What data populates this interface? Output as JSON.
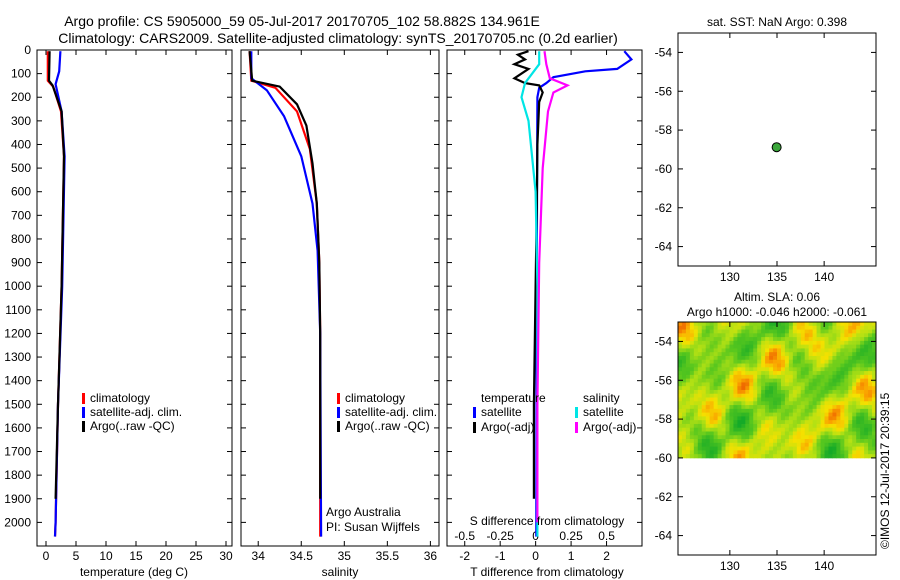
{
  "header": {
    "line1": "Argo profile: CS 5905000_59 05-Jul-2017 20170705_102 58.882S 134.961E",
    "line2": "Climatology: CARS2009. Satellite-adjusted climatology: synTS_20170705.nc (0.2d earlier)"
  },
  "side_caption": "©IMOS 12-Jul-2017 20:39:15",
  "colors": {
    "climatology": "#ff0000",
    "satellite": "#0000ff",
    "argo": "#000000",
    "cyan": "#00e5e5",
    "magenta": "#ff00ff",
    "marker": "#3aa63a"
  },
  "chart_data": [
    {
      "type": "line",
      "panel": "temperature",
      "xlabel": "temperature (deg C)",
      "ylabel": "",
      "xlim": [
        -1.5,
        31
      ],
      "ylim": [
        2100,
        0
      ],
      "xticks": [
        "0",
        "5",
        "10",
        "15",
        "20",
        "25",
        "30"
      ],
      "yticks": [
        "0",
        "100",
        "200",
        "300",
        "400",
        "500",
        "600",
        "700",
        "800",
        "900",
        "1000",
        "1100",
        "1200",
        "1300",
        "1400",
        "1500",
        "1600",
        "1700",
        "1800",
        "1900",
        "2000"
      ],
      "legend": [
        "climatology",
        "satellite-adj. clim.",
        "Argo(..raw -QC)"
      ],
      "series": [
        {
          "name": "climatology",
          "color": "#ff0000",
          "points": [
            [
              0.3,
              5
            ],
            [
              0.3,
              130
            ],
            [
              1.2,
              155
            ],
            [
              2.5,
              260
            ],
            [
              3.0,
              450
            ],
            [
              2.6,
              1000
            ],
            [
              2.0,
              1500
            ],
            [
              1.6,
              2000
            ],
            [
              1.5,
              2060
            ]
          ]
        },
        {
          "name": "satellite-adj. clim.",
          "color": "#0000ff",
          "points": [
            [
              2.4,
              5
            ],
            [
              2.2,
              90
            ],
            [
              1.6,
              145
            ],
            [
              2.6,
              260
            ],
            [
              3.1,
              450
            ],
            [
              2.7,
              1000
            ],
            [
              2.0,
              1500
            ],
            [
              1.6,
              2000
            ],
            [
              1.5,
              2060
            ]
          ]
        },
        {
          "name": "Argo(..raw -QC)",
          "color": "#000000",
          "points": [
            [
              0.6,
              5
            ],
            [
              0.5,
              130
            ],
            [
              1.1,
              150
            ],
            [
              2.6,
              260
            ],
            [
              3.0,
              450
            ],
            [
              2.6,
              1000
            ],
            [
              2.0,
              1500
            ],
            [
              1.6,
              1900
            ]
          ]
        }
      ]
    },
    {
      "type": "line",
      "panel": "salinity",
      "xlabel": "salinity",
      "ylabel": "",
      "xlim": [
        33.8,
        36.1
      ],
      "ylim": [
        2100,
        0
      ],
      "xticks": [
        "34",
        "34.5",
        "35",
        "35.5",
        "36"
      ],
      "legend": [
        "climatology",
        "satellite-adj. clim.",
        "Argo(..raw -QC)"
      ],
      "annotations": [
        "Argo Australia",
        "PI: Susan Wijffels"
      ],
      "series": [
        {
          "name": "climatology",
          "color": "#ff0000",
          "points": [
            [
              33.9,
              5
            ],
            [
              33.92,
              130
            ],
            [
              34.2,
              160
            ],
            [
              34.45,
              260
            ],
            [
              34.6,
              420
            ],
            [
              34.68,
              650
            ],
            [
              34.71,
              900
            ],
            [
              34.72,
              1200
            ],
            [
              34.72,
              1600
            ],
            [
              34.72,
              2060
            ]
          ]
        },
        {
          "name": "satellite-adj. clim.",
          "color": "#0000ff",
          "points": [
            [
              33.92,
              5
            ],
            [
              33.92,
              120
            ],
            [
              34.1,
              170
            ],
            [
              34.3,
              280
            ],
            [
              34.5,
              450
            ],
            [
              34.63,
              650
            ],
            [
              34.69,
              850
            ],
            [
              34.72,
              1200
            ],
            [
              34.73,
              2060
            ]
          ]
        },
        {
          "name": "Argo(..raw -QC)",
          "color": "#000000",
          "points": [
            [
              33.9,
              5
            ],
            [
              33.93,
              130
            ],
            [
              34.25,
              155
            ],
            [
              34.45,
              230
            ],
            [
              34.56,
              320
            ],
            [
              34.63,
              480
            ],
            [
              34.68,
              650
            ],
            [
              34.71,
              900
            ],
            [
              34.72,
              1200
            ],
            [
              34.72,
              1900
            ]
          ]
        }
      ]
    },
    {
      "type": "line",
      "panel": "difference",
      "xlabel": "T difference from climatology",
      "xlabel_top": "S difference from climatology",
      "xlim": [
        -2.5,
        3.0
      ],
      "ylim": [
        2100,
        0
      ],
      "xticks": [
        "-2",
        "-1",
        "0",
        "1",
        "2"
      ],
      "xticks_s": [
        "-0.5",
        "-0.25",
        "0",
        "0.25",
        "0.5"
      ],
      "legend_groups": [
        "temperature",
        "salinity"
      ],
      "legend": [
        "satellite",
        "Argo(-adj)",
        "satellite",
        "Argo(-adj)"
      ],
      "series": [
        {
          "name": "satellite",
          "group": "temperature",
          "color": "#0000ff",
          "points": [
            [
              2.5,
              5
            ],
            [
              2.7,
              40
            ],
            [
              2.3,
              80
            ],
            [
              1.4,
              90
            ],
            [
              0.5,
              115
            ],
            [
              0.3,
              140
            ],
            [
              0.1,
              160
            ],
            [
              0.05,
              200
            ],
            [
              0.03,
              1000
            ],
            [
              0.02,
              2060
            ]
          ]
        },
        {
          "name": "Argo(-adj)",
          "group": "temperature",
          "color": "#000000",
          "points": [
            [
              -0.2,
              5
            ],
            [
              -0.5,
              20
            ],
            [
              -0.3,
              40
            ],
            [
              -0.6,
              60
            ],
            [
              -0.2,
              80
            ],
            [
              -0.4,
              100
            ],
            [
              -0.6,
              120
            ],
            [
              -0.3,
              140
            ],
            [
              0.1,
              150
            ],
            [
              0.2,
              180
            ],
            [
              0.1,
              220
            ],
            [
              0.05,
              400
            ],
            [
              0.03,
              700
            ],
            [
              0.0,
              1000
            ],
            [
              -0.05,
              1500
            ],
            [
              -0.05,
              1900
            ]
          ]
        },
        {
          "name": "satellite",
          "group": "salinity",
          "color": "#00e5e5",
          "points": [
            [
              0.1,
              5
            ],
            [
              0.1,
              60
            ],
            [
              -0.3,
              140
            ],
            [
              -0.4,
              200
            ],
            [
              -0.2,
              300
            ],
            [
              0.0,
              600
            ],
            [
              0.05,
              1000
            ],
            [
              0.05,
              2060
            ]
          ]
        },
        {
          "name": "Argo(-adj)",
          "group": "salinity",
          "color": "#ff00ff",
          "points": [
            [
              0.25,
              5
            ],
            [
              0.3,
              60
            ],
            [
              0.4,
              120
            ],
            [
              0.9,
              150
            ],
            [
              0.5,
              180
            ],
            [
              0.35,
              260
            ],
            [
              0.2,
              500
            ],
            [
              0.1,
              900
            ],
            [
              0.05,
              1500
            ],
            [
              0.05,
              2000
            ]
          ]
        }
      ]
    },
    {
      "type": "scatter",
      "panel": "map",
      "title": "sat. SST: NaN Argo: 0.398",
      "xlim": [
        124.5,
        145.5
      ],
      "ylim": [
        -65,
        -53
      ],
      "xticks": [
        "130",
        "135",
        "140"
      ],
      "yticks": [
        "-54",
        "-56",
        "-58",
        "-60",
        "-62",
        "-64"
      ],
      "points": [
        [
          134.961,
          -58.882
        ]
      ]
    },
    {
      "type": "heatmap",
      "panel": "sla",
      "title_line1": "Altim. SLA: 0.06",
      "title_line2": "Argo h1000: -0.046 h2000: -0.061",
      "xlim": [
        124.5,
        145.5
      ],
      "ylim": [
        -65,
        -53
      ],
      "data_lat_range": [
        -60,
        -53
      ],
      "xticks": [
        "130",
        "135",
        "140"
      ],
      "yticks": [
        "-54",
        "-56",
        "-58",
        "-60",
        "-62",
        "-64"
      ]
    }
  ]
}
